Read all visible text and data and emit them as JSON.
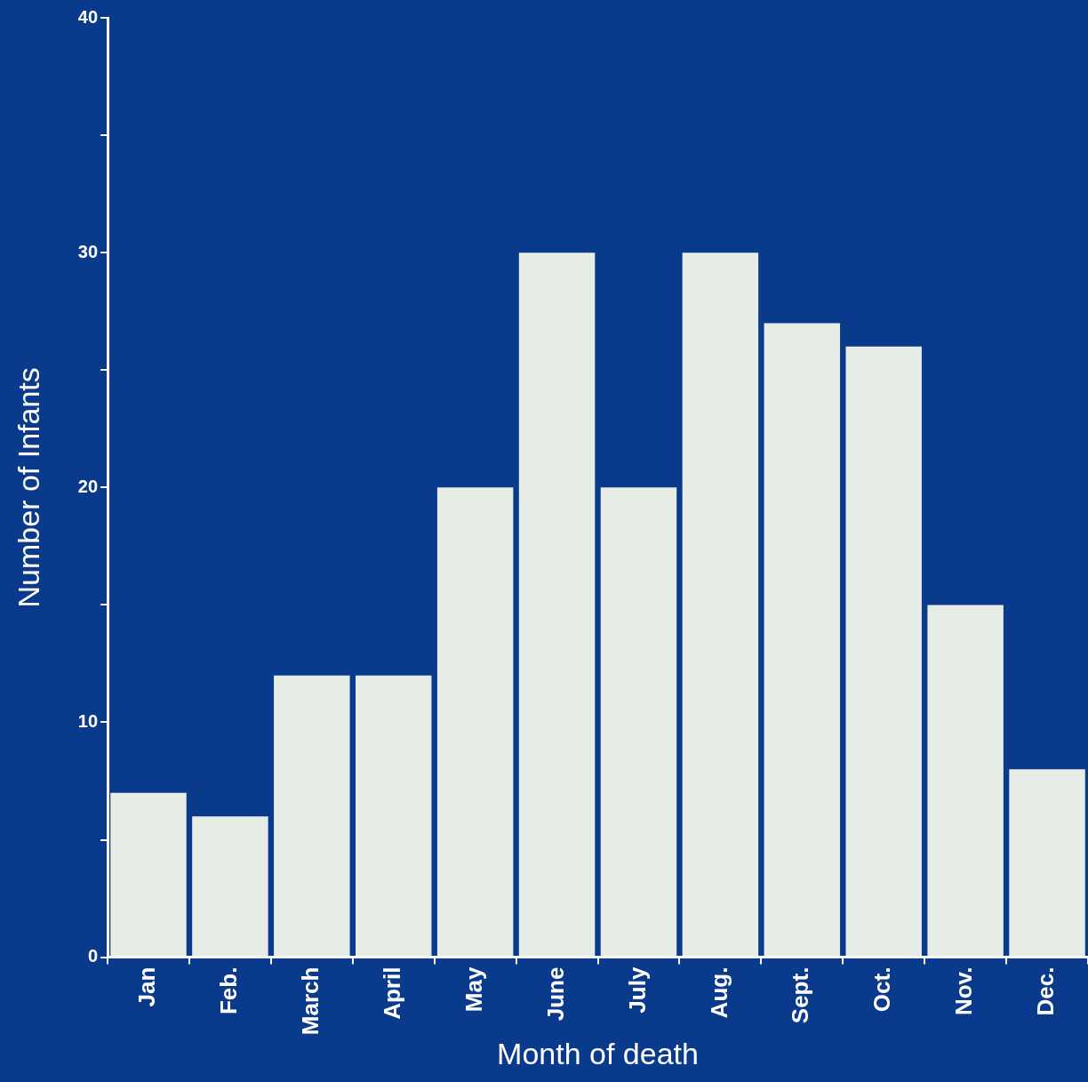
{
  "chart_data": {
    "type": "bar",
    "xlabel": "Month of death",
    "ylabel": "Number of Infants",
    "categories": [
      "Jan",
      "Feb.",
      "March",
      "April",
      "May",
      "June",
      "July",
      "Aug.",
      "Sept.",
      "Oct.",
      "Nov.",
      "Dec."
    ],
    "values": [
      7,
      6,
      12,
      12,
      20,
      30,
      20,
      30,
      27,
      26,
      15,
      8
    ],
    "color": "#e6ede6",
    "ylim": [
      0,
      40
    ],
    "yticks": [
      0,
      {
        "value": 5,
        "label": null
      },
      10,
      {
        "value": 15,
        "label": null
      },
      20,
      {
        "value": 25,
        "label": null
      },
      30,
      {
        "value": 35,
        "label": null
      },
      40
    ],
    "grid": false
  }
}
